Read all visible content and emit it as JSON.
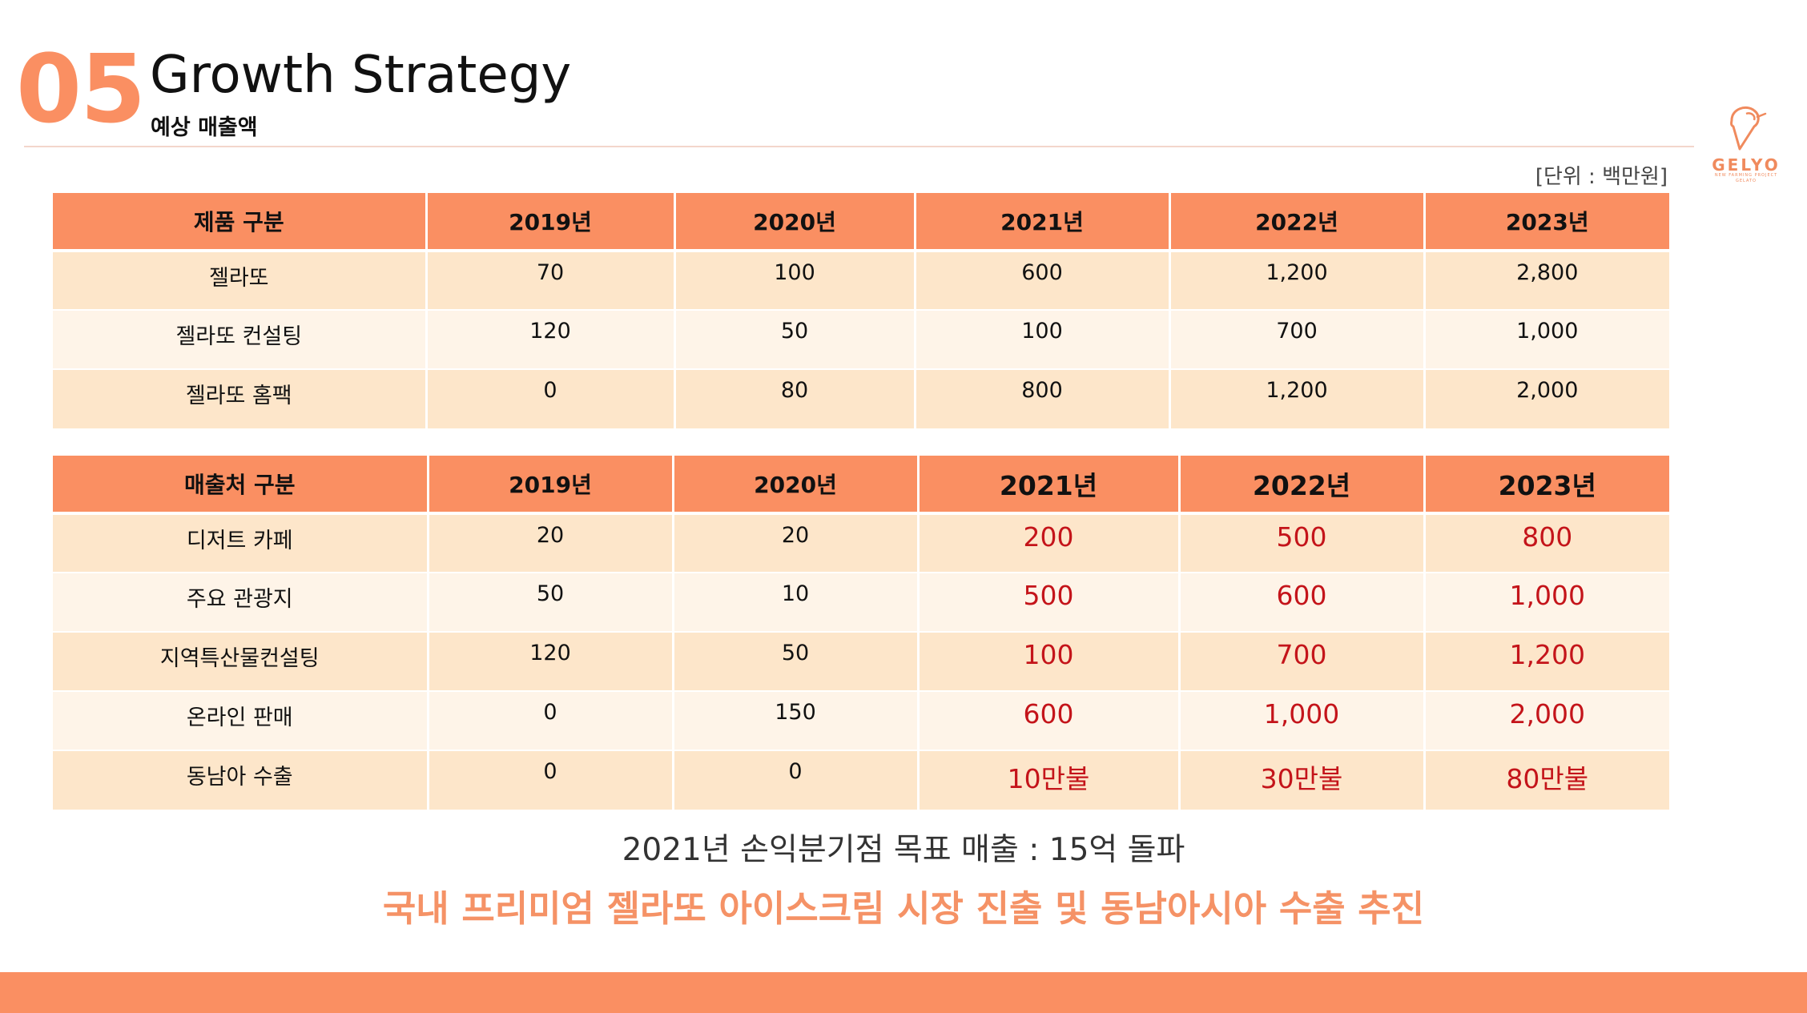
{
  "header": {
    "section_number": "05",
    "title": "Growth Strategy",
    "subtitle": "예상 매출액"
  },
  "logo": {
    "text": "GELYO",
    "tagline": "NEW FARMING PROJECT",
    "small": "GELATO",
    "icon": "ice-cream-logo-icon"
  },
  "unit_label": "[단위 : 백만원]",
  "colors": {
    "accent": "#fa8f62",
    "row_odd": "#fde6ca",
    "row_even": "#fef4e8",
    "highlight_red": "#c4141a",
    "headline": "#f59266"
  },
  "product_table": {
    "headers": [
      "제품 구분",
      "2019년",
      "2020년",
      "2021년",
      "2022년",
      "2023년"
    ],
    "rows": [
      [
        "젤라또",
        "70",
        "100",
        "600",
        "1,200",
        "2,800"
      ],
      [
        "젤라또 컨설팅",
        "120",
        "50",
        "100",
        "700",
        "1,000"
      ],
      [
        "젤라또 홈팩",
        "0",
        "80",
        "800",
        "1,200",
        "2,000"
      ]
    ]
  },
  "channel_table": {
    "headers": [
      "매출처 구분",
      "2019년",
      "2020년",
      "2021년",
      "2022년",
      "2023년"
    ],
    "rows": [
      [
        "디저트 카페",
        "20",
        "20",
        "200",
        "500",
        "800"
      ],
      [
        "주요 관광지",
        "50",
        "10",
        "500",
        "600",
        "1,000"
      ],
      [
        "지역특산물컨설팅",
        "120",
        "50",
        "100",
        "700",
        "1,200"
      ],
      [
        "온라인 판매",
        "0",
        "150",
        "600",
        "1,000",
        "2,000"
      ],
      [
        "동남아 수출",
        "0",
        "0",
        "10만불",
        "30만불",
        "80만불"
      ]
    ]
  },
  "note": "2021년 손익분기점 목표 매출 : 15억 돌파",
  "headline": "국내 프리미엄 젤라또 아이스크림 시장 진출 및 동남아시아 수출 추진"
}
